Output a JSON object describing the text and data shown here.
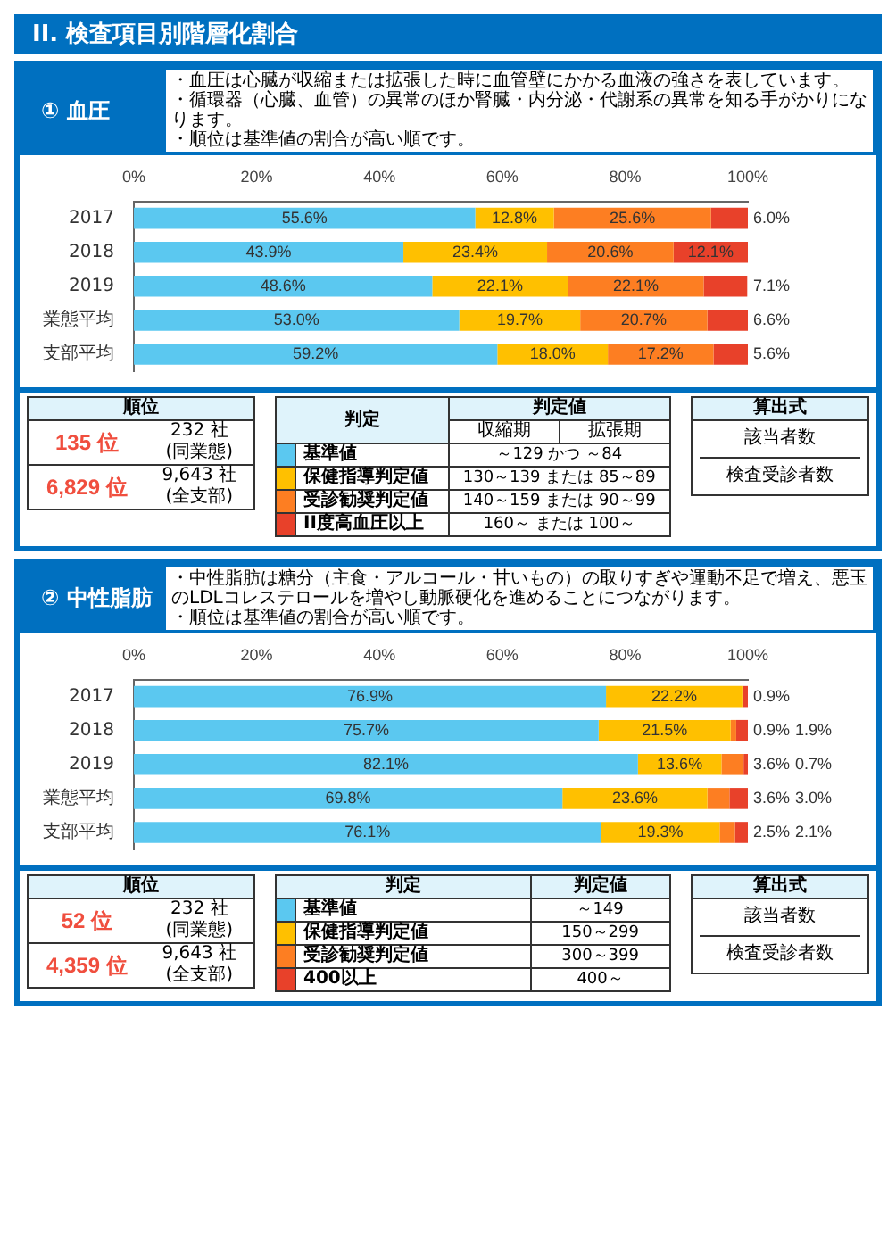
{
  "chart_data": [
    {
      "type": "other",
      "title": "II. 検査項目別階層化割合"
    },
    {
      "type": "bar",
      "orientation": "horizontal",
      "stacked": true,
      "title": "① 血圧",
      "legend": "bottom",
      "legend_title": "判定",
      "annotations": [
        "・血圧は心臓が収縮または拡張した時に血管壁にかかる血液の強さを表しています。",
        "・循環器（心臓、血管）の異常のほか腎臓・内分泌・代謝系の異常を知る手がかりになります。",
        "・順位は基準値の割合が高い順です。"
      ],
      "categories": [
        "2017",
        "2018",
        "2019",
        "業態平均",
        "支部平均"
      ],
      "xlim": [
        0,
        100
      ],
      "xticks": [
        {
          "value": 0,
          "label": "0%"
        },
        {
          "value": 20,
          "label": "20%"
        },
        {
          "value": 40,
          "label": "40%"
        },
        {
          "value": 60,
          "label": "60%"
        },
        {
          "value": 80,
          "label": "80%"
        },
        {
          "value": 100,
          "label": "100%"
        }
      ],
      "series": [
        {
          "name": "基準値",
          "color": "#5bc8f0",
          "values": [
            55.6,
            43.9,
            48.6,
            53.0,
            59.2
          ],
          "value_labels": [
            "55.6%",
            "43.9%",
            "48.6%",
            "53.0%",
            "59.2%"
          ]
        },
        {
          "name": "保健指導判定値",
          "color": "#ffc000",
          "values": [
            12.8,
            23.4,
            22.1,
            19.7,
            18.0
          ],
          "value_labels": [
            "12.8%",
            "23.4%",
            "22.1%",
            "19.7%",
            "18.0%"
          ]
        },
        {
          "name": "受診勧奨判定値",
          "color": "#fd7e22",
          "values": [
            25.6,
            20.6,
            22.1,
            20.7,
            17.2
          ],
          "value_labels": [
            "25.6%",
            "20.6%",
            "22.1%",
            "20.7%",
            "17.2%"
          ]
        },
        {
          "name": "II度高血圧以上",
          "color": "#e8412a",
          "values": [
            6.0,
            12.1,
            7.1,
            6.6,
            5.6
          ],
          "value_labels": [
            "6.0%",
            "12.1%",
            "7.1%",
            "6.6%",
            "5.6%"
          ]
        }
      ]
    },
    {
      "type": "other",
      "annotations": [
        "順位",
        "135 位",
        "232 社",
        "(同業態)",
        "6,829 位",
        "9,643 社",
        "(全支部)",
        "判定値",
        "収縮期",
        "拡張期",
        "～129 かつ ～84",
        "130～139 または 85～89",
        "140～159 または 90～99",
        "160～ または 100～",
        "算出式",
        "該当者数",
        "検査受診者数"
      ]
    },
    {
      "type": "bar",
      "orientation": "horizontal",
      "stacked": true,
      "title": "② 中性脂肪",
      "legend": "bottom",
      "legend_title": "判定",
      "annotations": [
        "・中性脂肪は糖分（主食・アルコール・甘いもの）の取りすぎや運動不足で増え、悪玉のLDLコレステロールを増やし動脈硬化を進めることにつながります。",
        "・順位は基準値の割合が高い順です。"
      ],
      "categories": [
        "2017",
        "2018",
        "2019",
        "業態平均",
        "支部平均"
      ],
      "xlim": [
        0,
        100
      ],
      "xticks": [
        {
          "value": 0,
          "label": "0%"
        },
        {
          "value": 20,
          "label": "20%"
        },
        {
          "value": 40,
          "label": "40%"
        },
        {
          "value": 60,
          "label": "60%"
        },
        {
          "value": 80,
          "label": "80%"
        },
        {
          "value": 100,
          "label": "100%"
        }
      ],
      "series": [
        {
          "name": "基準値",
          "color": "#5bc8f0",
          "values": [
            76.9,
            75.7,
            82.1,
            69.8,
            76.1
          ],
          "value_labels": [
            "76.9%",
            "75.7%",
            "82.1%",
            "69.8%",
            "76.1%"
          ]
        },
        {
          "name": "保健指導判定値",
          "color": "#ffc000",
          "values": [
            22.2,
            21.5,
            13.6,
            23.6,
            19.3
          ],
          "value_labels": [
            "22.2%",
            "21.5%",
            "13.6%",
            "23.6%",
            "19.3%"
          ]
        },
        {
          "name": "受診勧奨判定値",
          "color": "#fd7e22",
          "values": [
            null,
            0.9,
            3.6,
            3.6,
            2.5
          ],
          "value_labels": [
            null,
            "0.9%",
            "3.6%",
            "3.6%",
            "2.5%"
          ]
        },
        {
          "name": "400以上",
          "color": "#e8412a",
          "values": [
            0.9,
            1.9,
            0.7,
            3.0,
            2.1
          ],
          "value_labels": [
            "0.9%",
            "1.9%",
            "0.7%",
            "3.0%",
            "2.1%"
          ]
        }
      ]
    },
    {
      "type": "other",
      "annotations": [
        "順位",
        "52 位",
        "232 社",
        "(同業態)",
        "4,359 位",
        "9,643 社",
        "(全支部)",
        "判定値",
        "～149",
        "150～299",
        "300～399",
        "400～",
        "算出式",
        "該当者数",
        "検査受診者数"
      ]
    }
  ]
}
